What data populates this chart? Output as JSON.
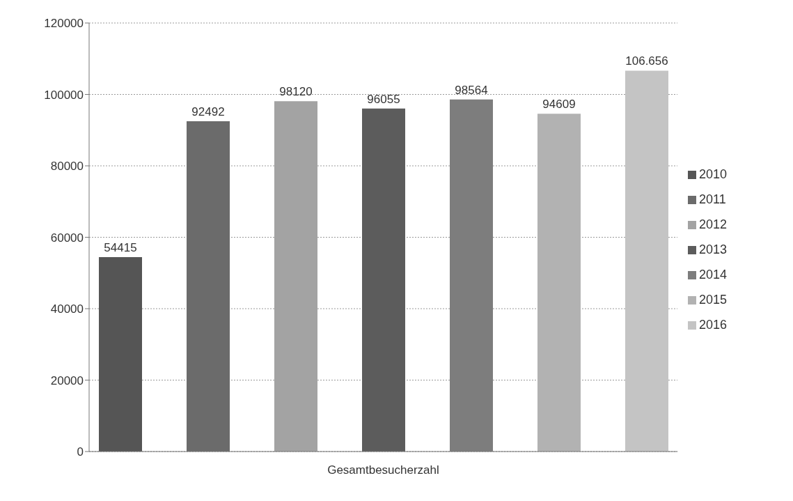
{
  "chart_data": {
    "type": "bar",
    "categories": [
      "Gesamtbesucherzahl"
    ],
    "series": [
      {
        "name": "2010",
        "color": "#555555",
        "values": [
          54415
        ],
        "value_labels": [
          "54415"
        ]
      },
      {
        "name": "2011",
        "color": "#6b6b6b",
        "values": [
          92492
        ],
        "value_labels": [
          "92492"
        ]
      },
      {
        "name": "2012",
        "color": "#a3a3a3",
        "values": [
          98120
        ],
        "value_labels": [
          "98120"
        ]
      },
      {
        "name": "2013",
        "color": "#5c5c5c",
        "values": [
          96055
        ],
        "value_labels": [
          "96055"
        ]
      },
      {
        "name": "2014",
        "color": "#7d7d7d",
        "values": [
          98564
        ],
        "value_labels": [
          "98564"
        ]
      },
      {
        "name": "2015",
        "color": "#b2b2b2",
        "values": [
          94609
        ],
        "value_labels": [
          "94609"
        ]
      },
      {
        "name": "2016",
        "color": "#c4c4c4",
        "values": [
          106656
        ],
        "value_labels": [
          "106.656"
        ]
      }
    ],
    "ylim": [
      0,
      120000
    ],
    "yticks": [
      0,
      20000,
      40000,
      60000,
      80000,
      100000,
      120000
    ],
    "grid": "y",
    "legend": "right"
  }
}
